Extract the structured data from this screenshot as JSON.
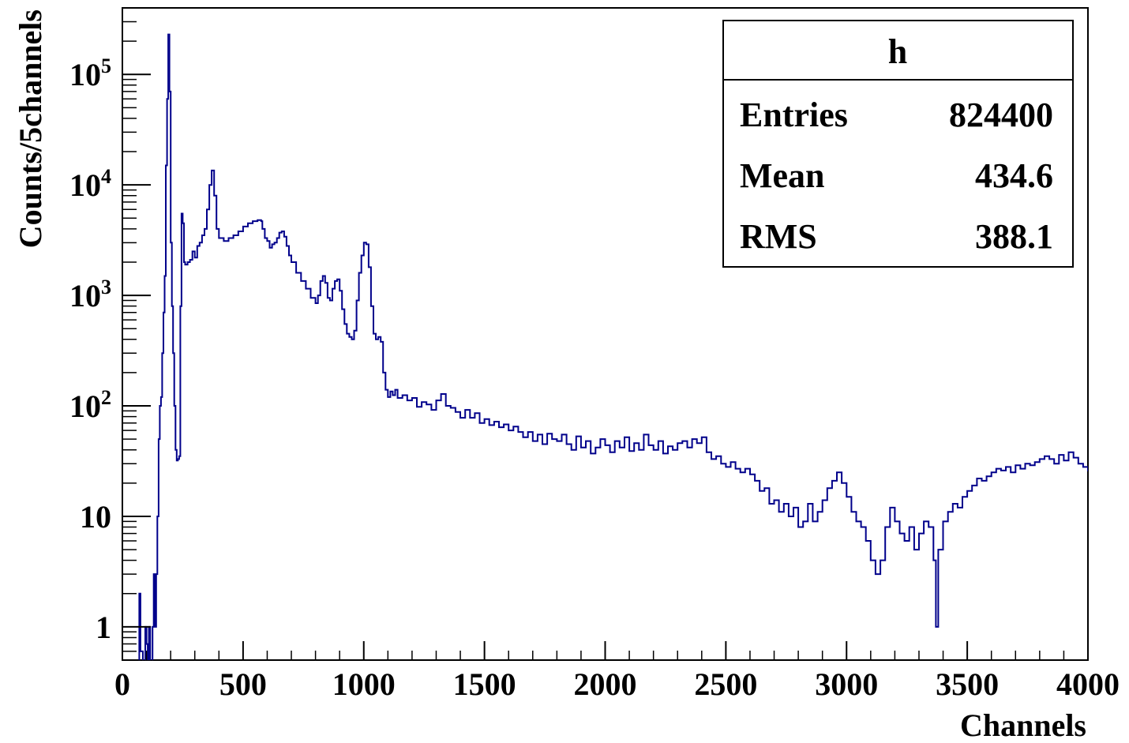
{
  "chart_data": {
    "type": "line",
    "title": "",
    "xlabel": "Channels",
    "ylabel": "Counts/5channels",
    "xlim": [
      0,
      4000
    ],
    "ylim": [
      0.5,
      400000
    ],
    "y_scale": "log",
    "grid": false,
    "x_ticks": [
      0,
      500,
      1000,
      1500,
      2000,
      2500,
      3000,
      3500,
      4000
    ],
    "y_ticks": [
      {
        "value": 1,
        "base": "1",
        "exp": ""
      },
      {
        "value": 10,
        "base": "10",
        "exp": ""
      },
      {
        "value": 100,
        "base": "10",
        "exp": "2"
      },
      {
        "value": 1000,
        "base": "10",
        "exp": "3"
      },
      {
        "value": 10000,
        "base": "10",
        "exp": "4"
      },
      {
        "value": 100000,
        "base": "10",
        "exp": "5"
      }
    ],
    "series": [
      {
        "color": "#00008b",
        "points": [
          [
            60,
            0.4
          ],
          [
            70,
            2
          ],
          [
            75,
            0.6
          ],
          [
            85,
            0.4
          ],
          [
            95,
            1
          ],
          [
            100,
            0.7
          ],
          [
            105,
            0.4
          ],
          [
            110,
            1
          ],
          [
            115,
            0.4
          ],
          [
            125,
            1
          ],
          [
            130,
            3
          ],
          [
            135,
            1
          ],
          [
            140,
            3
          ],
          [
            145,
            10
          ],
          [
            150,
            50
          ],
          [
            155,
            100
          ],
          [
            160,
            120
          ],
          [
            165,
            300
          ],
          [
            170,
            700
          ],
          [
            175,
            1500
          ],
          [
            180,
            15000
          ],
          [
            185,
            60000
          ],
          [
            190,
            230000
          ],
          [
            195,
            70000
          ],
          [
            200,
            3000
          ],
          [
            205,
            800
          ],
          [
            210,
            300
          ],
          [
            215,
            100
          ],
          [
            220,
            40
          ],
          [
            225,
            32
          ],
          [
            230,
            33
          ],
          [
            235,
            35
          ],
          [
            240,
            800
          ],
          [
            245,
            5500
          ],
          [
            250,
            4500
          ],
          [
            255,
            2000
          ],
          [
            260,
            1900
          ],
          [
            270,
            2000
          ],
          [
            280,
            2100
          ],
          [
            290,
            2500
          ],
          [
            300,
            2200
          ],
          [
            310,
            2800
          ],
          [
            320,
            3000
          ],
          [
            330,
            3500
          ],
          [
            340,
            4000
          ],
          [
            350,
            6000
          ],
          [
            360,
            10000
          ],
          [
            370,
            13500
          ],
          [
            380,
            8000
          ],
          [
            390,
            4000
          ],
          [
            400,
            3300
          ],
          [
            420,
            3100
          ],
          [
            440,
            3300
          ],
          [
            460,
            3500
          ],
          [
            480,
            3800
          ],
          [
            500,
            4200
          ],
          [
            520,
            4500
          ],
          [
            540,
            4700
          ],
          [
            560,
            4800
          ],
          [
            575,
            4700
          ],
          [
            580,
            4000
          ],
          [
            590,
            3300
          ],
          [
            600,
            3100
          ],
          [
            610,
            2700
          ],
          [
            620,
            2900
          ],
          [
            630,
            3000
          ],
          [
            640,
            3300
          ],
          [
            650,
            3700
          ],
          [
            660,
            3800
          ],
          [
            670,
            3400
          ],
          [
            680,
            2800
          ],
          [
            690,
            2300
          ],
          [
            700,
            2000
          ],
          [
            720,
            1600
          ],
          [
            740,
            1350
          ],
          [
            760,
            1150
          ],
          [
            780,
            950
          ],
          [
            800,
            850
          ],
          [
            810,
            1000
          ],
          [
            820,
            1350
          ],
          [
            830,
            1500
          ],
          [
            840,
            1300
          ],
          [
            850,
            950
          ],
          [
            860,
            900
          ],
          [
            870,
            1150
          ],
          [
            880,
            1350
          ],
          [
            890,
            1400
          ],
          [
            900,
            1100
          ],
          [
            910,
            750
          ],
          [
            920,
            550
          ],
          [
            930,
            450
          ],
          [
            940,
            420
          ],
          [
            950,
            400
          ],
          [
            960,
            480
          ],
          [
            970,
            900
          ],
          [
            980,
            1600
          ],
          [
            990,
            2300
          ],
          [
            1000,
            3000
          ],
          [
            1010,
            2900
          ],
          [
            1020,
            1800
          ],
          [
            1030,
            800
          ],
          [
            1040,
            450
          ],
          [
            1050,
            400
          ],
          [
            1060,
            420
          ],
          [
            1070,
            380
          ],
          [
            1080,
            200
          ],
          [
            1090,
            140
          ],
          [
            1100,
            120
          ],
          [
            1110,
            135
          ],
          [
            1120,
            125
          ],
          [
            1130,
            140
          ],
          [
            1140,
            118
          ],
          [
            1160,
            125
          ],
          [
            1180,
            112
          ],
          [
            1200,
            118
          ],
          [
            1220,
            98
          ],
          [
            1240,
            108
          ],
          [
            1260,
            103
          ],
          [
            1280,
            92
          ],
          [
            1300,
            112
          ],
          [
            1320,
            128
          ],
          [
            1340,
            100
          ],
          [
            1360,
            96
          ],
          [
            1380,
            88
          ],
          [
            1400,
            78
          ],
          [
            1420,
            92
          ],
          [
            1440,
            78
          ],
          [
            1460,
            86
          ],
          [
            1480,
            70
          ],
          [
            1500,
            76
          ],
          [
            1520,
            67
          ],
          [
            1540,
            72
          ],
          [
            1560,
            64
          ],
          [
            1580,
            68
          ],
          [
            1600,
            60
          ],
          [
            1620,
            65
          ],
          [
            1640,
            58
          ],
          [
            1660,
            52
          ],
          [
            1680,
            58
          ],
          [
            1700,
            48
          ],
          [
            1720,
            55
          ],
          [
            1740,
            45
          ],
          [
            1760,
            56
          ],
          [
            1780,
            50
          ],
          [
            1800,
            48
          ],
          [
            1820,
            55
          ],
          [
            1840,
            45
          ],
          [
            1860,
            40
          ],
          [
            1880,
            53
          ],
          [
            1900,
            42
          ],
          [
            1920,
            48
          ],
          [
            1940,
            37
          ],
          [
            1960,
            42
          ],
          [
            1980,
            50
          ],
          [
            2000,
            44
          ],
          [
            2020,
            38
          ],
          [
            2040,
            48
          ],
          [
            2060,
            42
          ],
          [
            2080,
            52
          ],
          [
            2100,
            39
          ],
          [
            2120,
            46
          ],
          [
            2140,
            40
          ],
          [
            2160,
            55
          ],
          [
            2180,
            44
          ],
          [
            2200,
            40
          ],
          [
            2220,
            48
          ],
          [
            2240,
            37
          ],
          [
            2260,
            43
          ],
          [
            2280,
            40
          ],
          [
            2300,
            46
          ],
          [
            2320,
            48
          ],
          [
            2340,
            42
          ],
          [
            2360,
            50
          ],
          [
            2380,
            46
          ],
          [
            2400,
            52
          ],
          [
            2420,
            38
          ],
          [
            2440,
            33
          ],
          [
            2460,
            35
          ],
          [
            2480,
            30
          ],
          [
            2500,
            28
          ],
          [
            2520,
            31
          ],
          [
            2540,
            27
          ],
          [
            2560,
            25
          ],
          [
            2580,
            27
          ],
          [
            2600,
            24
          ],
          [
            2620,
            21
          ],
          [
            2640,
            17
          ],
          [
            2660,
            18
          ],
          [
            2680,
            13
          ],
          [
            2700,
            14
          ],
          [
            2720,
            11
          ],
          [
            2740,
            13
          ],
          [
            2760,
            10
          ],
          [
            2780,
            12
          ],
          [
            2800,
            8
          ],
          [
            2820,
            9
          ],
          [
            2840,
            13
          ],
          [
            2860,
            9
          ],
          [
            2880,
            11
          ],
          [
            2900,
            14
          ],
          [
            2920,
            18
          ],
          [
            2940,
            21
          ],
          [
            2960,
            25
          ],
          [
            2980,
            20
          ],
          [
            3000,
            15
          ],
          [
            3020,
            11
          ],
          [
            3040,
            9
          ],
          [
            3060,
            8
          ],
          [
            3080,
            6
          ],
          [
            3100,
            4
          ],
          [
            3120,
            3
          ],
          [
            3140,
            4
          ],
          [
            3160,
            8
          ],
          [
            3180,
            12
          ],
          [
            3200,
            9
          ],
          [
            3220,
            7
          ],
          [
            3240,
            6
          ],
          [
            3260,
            8
          ],
          [
            3280,
            5
          ],
          [
            3300,
            7
          ],
          [
            3320,
            9
          ],
          [
            3340,
            8
          ],
          [
            3360,
            4
          ],
          [
            3370,
            1
          ],
          [
            3380,
            5
          ],
          [
            3400,
            9
          ],
          [
            3420,
            11
          ],
          [
            3440,
            13
          ],
          [
            3460,
            12
          ],
          [
            3480,
            15
          ],
          [
            3500,
            17
          ],
          [
            3520,
            19
          ],
          [
            3540,
            22
          ],
          [
            3560,
            21
          ],
          [
            3580,
            23
          ],
          [
            3600,
            25
          ],
          [
            3620,
            27
          ],
          [
            3640,
            26
          ],
          [
            3660,
            28
          ],
          [
            3680,
            25
          ],
          [
            3700,
            29
          ],
          [
            3720,
            27
          ],
          [
            3740,
            30
          ],
          [
            3760,
            29
          ],
          [
            3780,
            31
          ],
          [
            3800,
            33
          ],
          [
            3820,
            35
          ],
          [
            3840,
            33
          ],
          [
            3860,
            30
          ],
          [
            3880,
            36
          ],
          [
            3900,
            32
          ],
          [
            3920,
            38
          ],
          [
            3940,
            34
          ],
          [
            3960,
            30
          ],
          [
            3980,
            28
          ],
          [
            4000,
            26
          ]
        ]
      }
    ],
    "stats_box": {
      "title": "h",
      "rows": [
        {
          "label": "Entries",
          "value": "824400"
        },
        {
          "label": "Mean",
          "value": "434.6"
        },
        {
          "label": "RMS",
          "value": "388.1"
        }
      ]
    }
  }
}
